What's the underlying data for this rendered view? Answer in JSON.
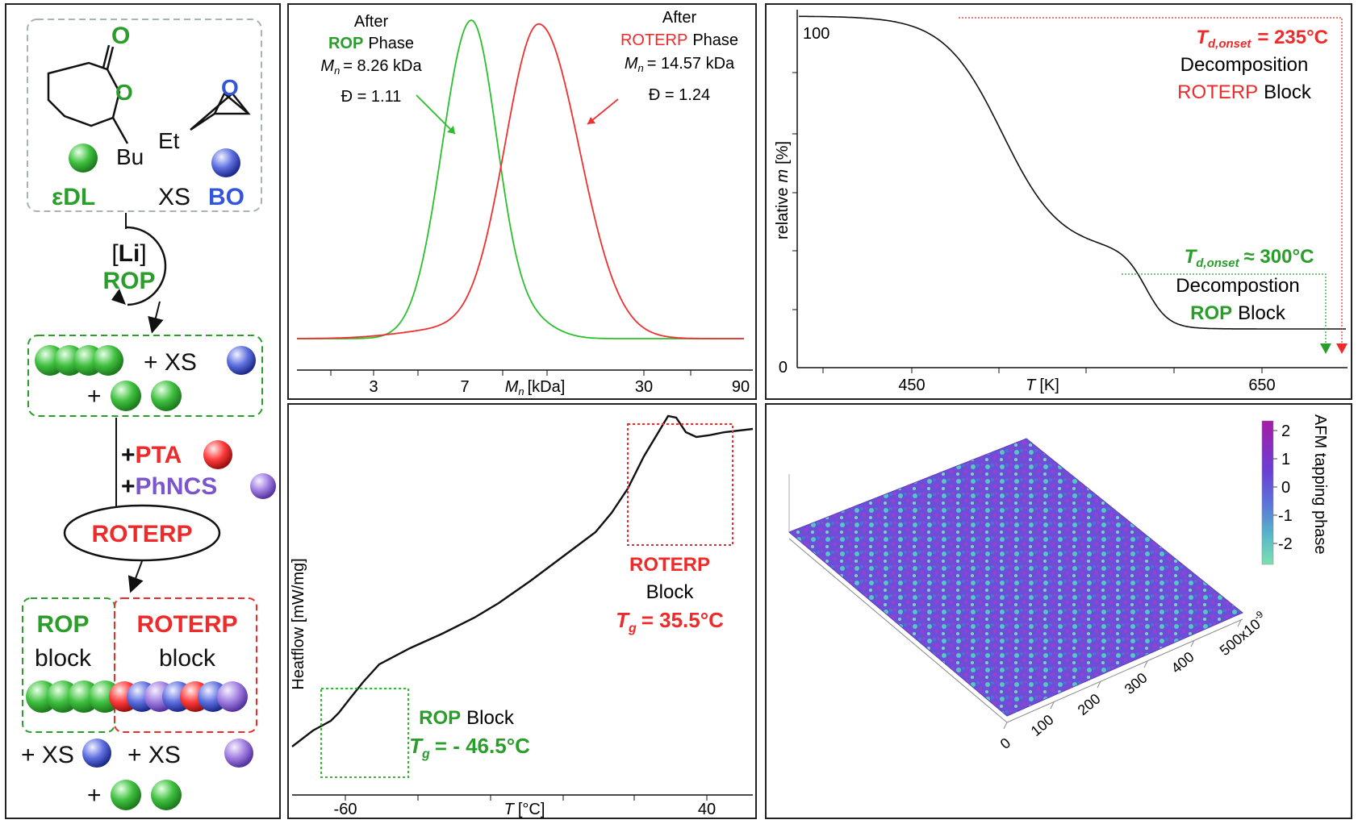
{
  "colors": {
    "green": "#2a9d2a",
    "red": "#ee2a2a",
    "blue": "#3355dd",
    "purple": "#7a55cc",
    "black": "#111111"
  },
  "scheme": {
    "atom_o1": "O",
    "atom_o2": "O",
    "bu": "Bu",
    "et": "Et",
    "edl": "εDL",
    "xs": "XS",
    "bo": "BO",
    "li_open": "[",
    "li": "Li",
    "li_close": "]",
    "rop": "ROP",
    "plus_xs": "+ XS",
    "plus": "+",
    "plus_pta_plus": "+",
    "pta": "PTA",
    "plus_phncs": "+",
    "phncs": "PhNCS",
    "roterp": "ROTERP",
    "rop_block_title": "ROP",
    "block_word_1": "block",
    "roterp_block_title": "ROTERP",
    "block_word_2": "block",
    "bottom_xs_1": "+ XS",
    "bottom_xs_2": "+ XS",
    "bottom_plus": "+"
  },
  "sec": {
    "rop_after": "After",
    "rop_name": "ROP",
    "rop_phase": "Phase",
    "rop_mn_sym": "M",
    "rop_mn_sub": "n",
    "rop_mn_val": "= 8.26 kDa",
    "rop_d": "Đ = 1.11",
    "roterp_after": "After",
    "roterp_name": "ROTERP",
    "roterp_phase": "Phase",
    "roterp_mn_sym": "M",
    "roterp_mn_sub": "n",
    "roterp_mn_val": "= 14.57 kDa",
    "roterp_d": "Đ = 1.24",
    "xlabel_sym": "M",
    "xlabel_sub": "n",
    "xlabel_unit": "[kDa]",
    "ticks": [
      "3",
      "7",
      "30",
      "90"
    ]
  },
  "tga": {
    "y_top": "100",
    "y_bottom": "0",
    "ylabel_pre": "relative",
    "ylabel_sym": "m",
    "ylabel_unit": "[%]",
    "xlabel_sym": "T",
    "xlabel_unit": "[K]",
    "ticks": [
      "450",
      "650"
    ],
    "red_td_t": "T",
    "red_td_sub": "d,onset",
    "red_td_val": "= 235°C",
    "red_line2": "Decomposition",
    "red_line3a": "ROTERP",
    "red_line3b": "Block",
    "green_td_t": "T",
    "green_td_sub": "d,onset",
    "green_td_val": "≈ 300°C",
    "green_line2": "Decompostion",
    "green_line3a": "ROP",
    "green_line3b": "Block"
  },
  "dsc": {
    "ylabel": "Heatflow [mW/mg]",
    "xlabel_sym": "T",
    "xlabel_unit": "[°C]",
    "ticks": [
      "-60",
      "40"
    ],
    "roterp_title": "ROTERP",
    "roterp_block": "Block",
    "roterp_tg_sym": "T",
    "roterp_tg_sub": "g",
    "roterp_tg_val": "= 35.5°C",
    "rop_title": "ROP",
    "rop_block": "Block",
    "rop_tg_sym": "T",
    "rop_tg_sub": "g",
    "rop_tg_val": "= - 46.5°C"
  },
  "afm": {
    "colorbar_title": "AFM tapping phase",
    "colorbar_ticks": [
      "2",
      "1",
      "0",
      "-1",
      "-2"
    ],
    "axis_ticks": [
      "0",
      "100",
      "200",
      "300",
      "400",
      "500x10"
    ],
    "axis_exp": "-9"
  }
}
